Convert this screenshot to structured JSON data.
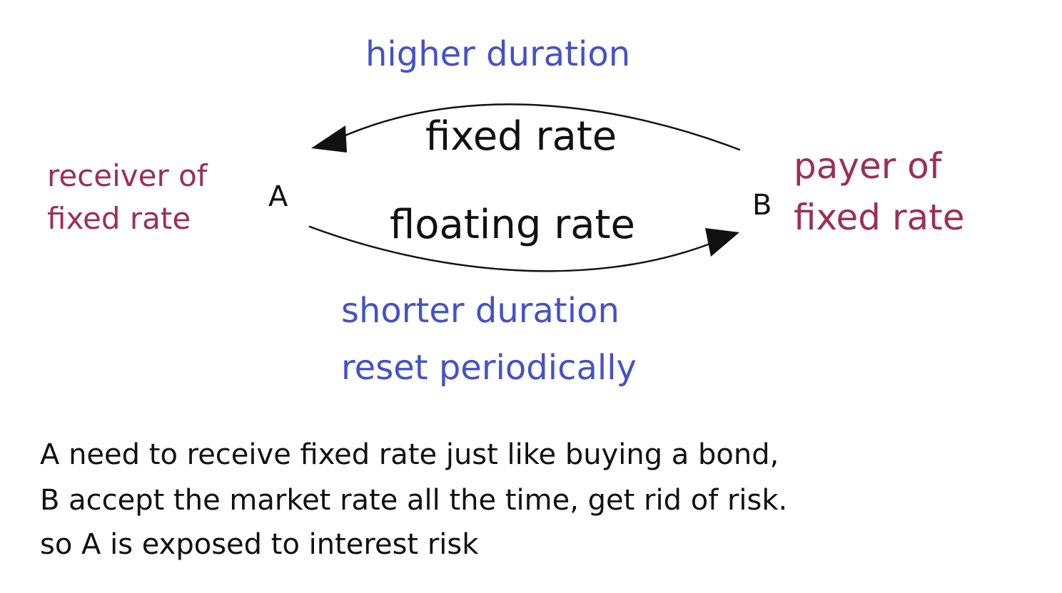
{
  "colors": {
    "blue": "#4452c6",
    "red": "#9c2f55",
    "black": "#111111"
  },
  "diagram": {
    "top_arrow": {
      "annotation": "higher duration",
      "label": "fixed rate",
      "direction": "B-to-A"
    },
    "bottom_arrow": {
      "label": "floating rate",
      "annotation_line1": "shorter duration",
      "annotation_line2": "reset periodically",
      "direction": "A-to-B"
    },
    "node_a": {
      "name": "A",
      "role_line1": "receiver of",
      "role_line2": "fixed rate"
    },
    "node_b": {
      "name": "B",
      "role_line1": "payer of",
      "role_line2": "fixed rate"
    }
  },
  "notes": [
    "A need to receive fixed rate just like buying a bond,",
    "B accept the market rate all the time, get rid of risk.",
    "so A is exposed to interest risk"
  ]
}
